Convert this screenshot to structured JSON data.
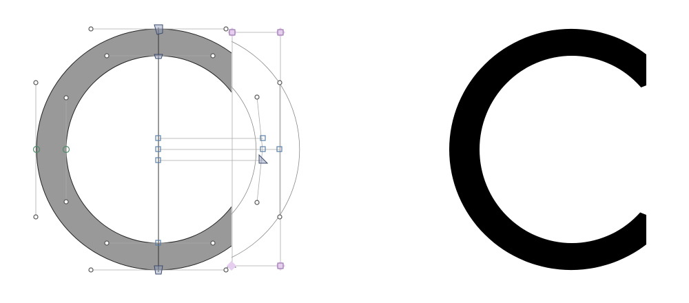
{
  "editor": {
    "glyph_outline_view": {
      "glyph_fill_color": "#999999",
      "outline_stroke_color": "#222222",
      "guide_line_color": "#bbbbbb",
      "on_curve_point_color": "#5a7fa8",
      "off_curve_handle_color": "#555555",
      "anchor_color": "#c8a7d8",
      "extremum_point_color": "#4f8a6a"
    },
    "glyph_preview": {
      "fill_color": "#000000"
    }
  }
}
